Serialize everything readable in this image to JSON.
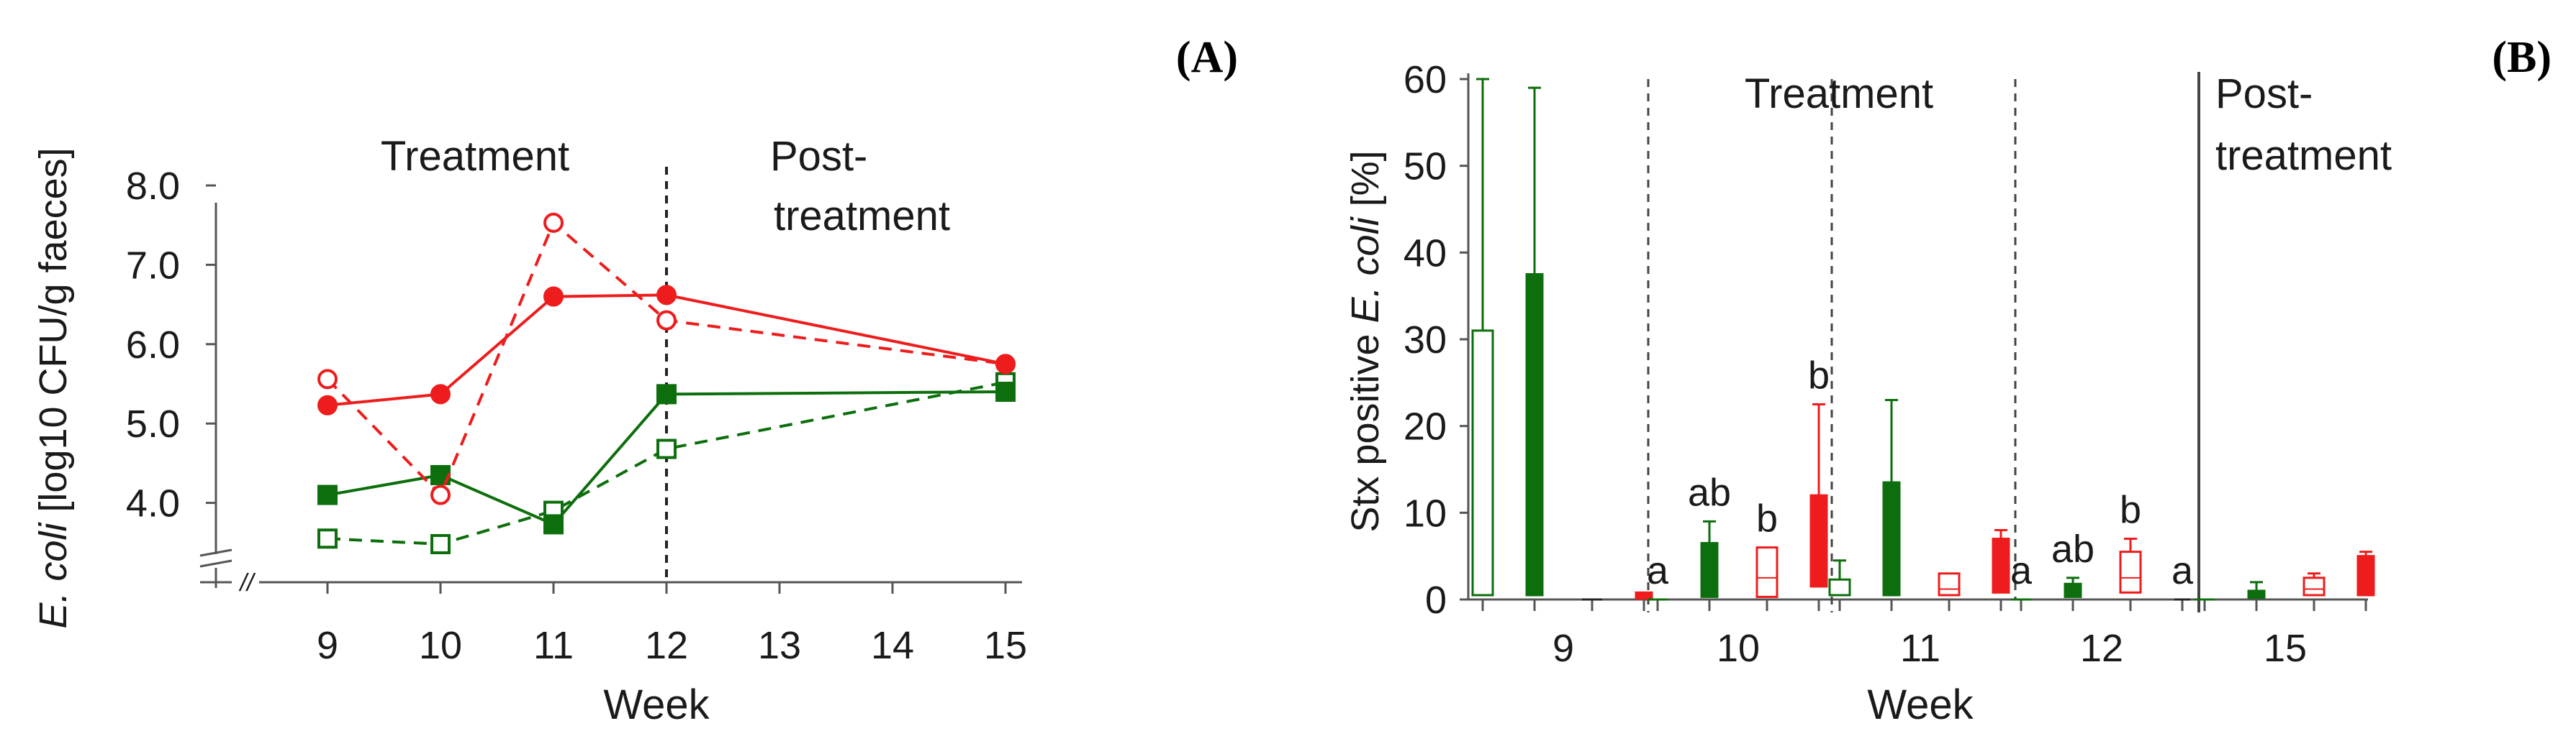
{
  "colors": {
    "red": "#ee1c1c",
    "green": "#0c6e0c",
    "axis": "#555555",
    "text": "#1a1a1a"
  },
  "chart_data": [
    {
      "panel": "(A)",
      "type": "line",
      "xlabel": "Week",
      "ylabel_italic": "E. coli",
      "ylabel_rest": " [log10 CFU/g  faeces]",
      "xticks": [
        9,
        10,
        11,
        12,
        13,
        14,
        15
      ],
      "yticks": [
        "8.0",
        "7.0",
        "6.0",
        "5.0",
        "4.0"
      ],
      "ylim": [
        3.0,
        8.0
      ],
      "axis_break": "//",
      "region_labels": {
        "treatment": "Treatment",
        "post_1": "Post-",
        "post_2": "treatment"
      },
      "divider_at_week": 12,
      "series": [
        {
          "key": "red_filled",
          "color": "red",
          "marker": "circle",
          "filled": true,
          "dashed": false,
          "x": [
            9,
            10,
            11,
            12,
            15
          ],
          "y": [
            5.23,
            5.37,
            6.6,
            6.62,
            5.75
          ]
        },
        {
          "key": "red_open",
          "color": "red",
          "marker": "circle",
          "filled": false,
          "dashed": true,
          "x": [
            9,
            10,
            11,
            12,
            15
          ],
          "y": [
            5.56,
            4.1,
            7.53,
            6.3,
            5.75
          ]
        },
        {
          "key": "green_filled",
          "color": "green",
          "marker": "square",
          "filled": true,
          "dashed": false,
          "x": [
            9,
            10,
            11,
            12,
            15
          ],
          "y": [
            4.1,
            4.35,
            3.73,
            5.37,
            5.4
          ]
        },
        {
          "key": "green_open",
          "color": "green",
          "marker": "square",
          "filled": false,
          "dashed": true,
          "x": [
            9,
            10,
            11,
            12,
            15
          ],
          "y": [
            3.55,
            3.48,
            3.9,
            4.68,
            5.52
          ]
        }
      ]
    },
    {
      "panel": "(B)",
      "type": "bar",
      "xlabel": "Week",
      "ylabel_pre": "Stx positive ",
      "ylabel_italic": "E. coli",
      "ylabel_post": " [%]",
      "yticks": [
        0,
        10,
        20,
        30,
        40,
        50,
        60
      ],
      "ylim": [
        0,
        60
      ],
      "categories": [
        "9",
        "10",
        "11",
        "12",
        "15"
      ],
      "region_labels": {
        "treatment": "Treatment",
        "post_1": "Post-",
        "post_2": "treatment"
      },
      "box_order": [
        "green_open",
        "green_filled",
        "red_open",
        "red_filled"
      ],
      "groups": [
        {
          "week": "9",
          "boxes": [
            {
              "series": "green_open",
              "low": 0.5,
              "high": 31,
              "median": 0.5,
              "whisker": 60,
              "letter": ""
            },
            {
              "series": "green_filled",
              "low": 0.5,
              "high": 37.5,
              "median": 0.5,
              "whisker": 59,
              "letter": ""
            },
            {
              "series": "red_open",
              "low": 0,
              "high": 0,
              "median": 0,
              "whisker": null,
              "letter": ""
            },
            {
              "series": "red_filled",
              "low": 0.1,
              "high": 0.8,
              "median": 0.2,
              "whisker": null,
              "letter": ""
            }
          ]
        },
        {
          "week": "10",
          "boxes": [
            {
              "series": "green_open",
              "low": 0,
              "high": 0,
              "median": 0,
              "whisker": null,
              "letter": "a"
            },
            {
              "series": "green_filled",
              "low": 0.3,
              "high": 6.5,
              "median": 0.3,
              "whisker": 9,
              "letter": "ab"
            },
            {
              "series": "red_open",
              "low": 0.3,
              "high": 6.0,
              "median": 2.5,
              "whisker": null,
              "letter": "b"
            },
            {
              "series": "red_filled",
              "low": 1.5,
              "high": 12,
              "median": 2.5,
              "whisker": 22.5,
              "letter": "b"
            }
          ]
        },
        {
          "week": "11",
          "boxes": [
            {
              "series": "green_open",
              "low": 0.5,
              "high": 2.3,
              "median": 0.5,
              "whisker": 4.5,
              "letter": ""
            },
            {
              "series": "green_filled",
              "low": 0.5,
              "high": 13.5,
              "median": 0.5,
              "whisker": 23,
              "letter": ""
            },
            {
              "series": "red_open",
              "low": 0.5,
              "high": 3.0,
              "median": 1.2,
              "whisker": null,
              "letter": ""
            },
            {
              "series": "red_filled",
              "low": 0.8,
              "high": 7.0,
              "median": 1.5,
              "whisker": 8,
              "letter": ""
            }
          ]
        },
        {
          "week": "12",
          "boxes": [
            {
              "series": "green_open",
              "low": 0,
              "high": 0,
              "median": 0,
              "whisker": null,
              "letter": "a"
            },
            {
              "series": "green_filled",
              "low": 0.3,
              "high": 1.8,
              "median": 0.3,
              "whisker": 2.5,
              "letter": "ab"
            },
            {
              "series": "red_open",
              "low": 0.8,
              "high": 5.5,
              "median": 2.5,
              "whisker": 7,
              "letter": "b"
            },
            {
              "series": "red_filled",
              "low": 0,
              "high": 0,
              "median": 0,
              "whisker": null,
              "letter": "a"
            }
          ]
        },
        {
          "week": "15",
          "boxes": [
            {
              "series": "green_open",
              "low": 0,
              "high": 0,
              "median": 0,
              "whisker": null,
              "letter": ""
            },
            {
              "series": "green_filled",
              "low": 0.2,
              "high": 1.0,
              "median": 0.3,
              "whisker": 2,
              "letter": ""
            },
            {
              "series": "red_open",
              "low": 0.5,
              "high": 2.5,
              "median": 1.2,
              "whisker": 3,
              "letter": ""
            },
            {
              "series": "red_filled",
              "low": 0.5,
              "high": 5.0,
              "median": 0.5,
              "whisker": 5.5,
              "letter": ""
            }
          ]
        }
      ]
    }
  ]
}
